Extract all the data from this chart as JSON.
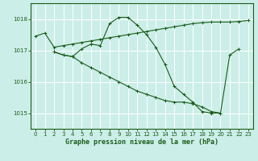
{
  "bg_color": "#cceee8",
  "grid_color": "#ffffff",
  "line_color": "#1a5c1a",
  "marker_color": "#1a5c1a",
  "xlabel": "Graphe pression niveau de la mer (hPa)",
  "xlabel_color": "#1a5c1a",
  "tick_color": "#1a5c1a",
  "ylim": [
    1014.5,
    1018.5
  ],
  "xlim": [
    -0.5,
    23.5
  ],
  "yticks": [
    1015,
    1016,
    1017,
    1018
  ],
  "xticks": [
    0,
    1,
    2,
    3,
    4,
    5,
    6,
    7,
    8,
    9,
    10,
    11,
    12,
    13,
    14,
    15,
    16,
    17,
    18,
    19,
    20,
    21,
    22,
    23
  ],
  "line1_x": [
    0,
    1,
    2,
    3,
    4,
    5,
    6,
    7,
    8,
    9,
    10,
    11,
    12,
    13,
    14,
    15,
    16,
    17,
    18,
    19,
    20,
    21,
    22,
    23
  ],
  "line1_y": [
    1017.45,
    1017.55,
    1017.1,
    1017.15,
    1017.2,
    1017.25,
    1017.3,
    1017.35,
    1017.4,
    1017.45,
    1017.5,
    1017.55,
    1017.6,
    1017.65,
    1017.7,
    1017.75,
    1017.8,
    1017.85,
    1017.88,
    1017.9,
    1017.9,
    1017.9,
    1017.92,
    1017.95
  ],
  "line2_x": [
    2,
    3,
    4,
    5,
    6,
    7,
    8,
    9,
    10,
    11,
    12,
    13,
    14,
    15,
    16,
    17,
    18,
    19,
    20,
    21,
    22
  ],
  "line2_y": [
    1016.95,
    1016.85,
    1016.8,
    1017.05,
    1017.2,
    1017.15,
    1017.85,
    1018.05,
    1018.05,
    1017.8,
    1017.5,
    1017.1,
    1016.55,
    1015.85,
    1015.6,
    1015.35,
    1015.05,
    1015.0,
    1015.0,
    1016.85,
    1017.05
  ],
  "line3_x": [
    2,
    3,
    4,
    5,
    6,
    7,
    8,
    9,
    10,
    11,
    12,
    13,
    14,
    15,
    16,
    17,
    18,
    19,
    20
  ],
  "line3_y": [
    1016.95,
    1016.85,
    1016.8,
    1016.6,
    1016.45,
    1016.3,
    1016.15,
    1016.0,
    1015.85,
    1015.7,
    1015.6,
    1015.5,
    1015.4,
    1015.35,
    1015.35,
    1015.3,
    1015.2,
    1015.05,
    1015.0
  ],
  "lw": 0.8,
  "ms": 2.5
}
